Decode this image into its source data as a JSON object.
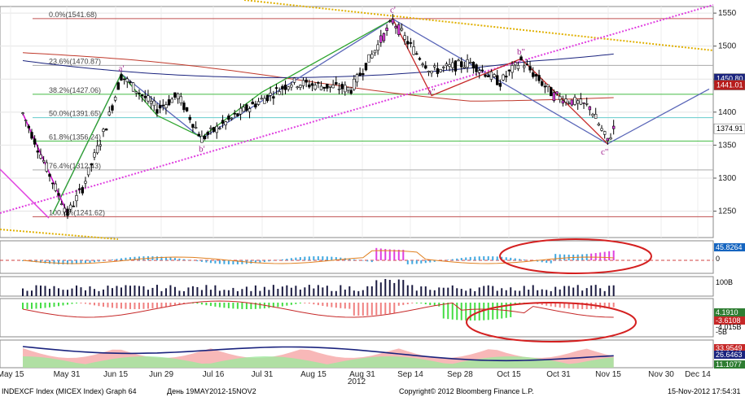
{
  "chart_data": {
    "type": "candlestick",
    "price_axis": {
      "min": 1210,
      "max": 1560,
      "ticks": [
        1250,
        1300,
        1350,
        1400,
        1450,
        1500,
        1550
      ]
    },
    "x_ticks": [
      "May 15",
      "May 31",
      "Jun 15",
      "Jun 29",
      "Jul 16",
      "Jul 31",
      "Aug 15",
      "Aug 31",
      "Sep 14",
      "Sep 28",
      "Oct 15",
      "Oct 31",
      "Nov 15",
      "Nov 30",
      "Dec 14"
    ],
    "x_year": "2012",
    "fibonacci": [
      {
        "label": "0.0%(1541.68)",
        "value": 1541.68,
        "color": "#c05050"
      },
      {
        "label": "23.6%(1470.87)",
        "value": 1470.87,
        "color": "#aaaaaa"
      },
      {
        "label": "38.2%(1427.06)",
        "value": 1427.06,
        "color": "#44bb44"
      },
      {
        "label": "50.0%(1391.65)",
        "value": 1391.65,
        "color": "#66cccc"
      },
      {
        "label": "61.8%(1356.24)",
        "value": 1356.24,
        "color": "#44bb44"
      },
      {
        "label": "76.4%(1312.43)",
        "value": 1312.43,
        "color": "#aaaaaa"
      },
      {
        "label": "100.0%(1241.62)",
        "value": 1241.62,
        "color": "#c05050"
      }
    ],
    "wave_labels": [
      {
        "text": "a'",
        "day": 33,
        "price": 1462
      },
      {
        "text": "b'",
        "day": 60,
        "price": 1340
      },
      {
        "text": "c'",
        "day": 124,
        "price": 1551
      },
      {
        "text": "a\"",
        "day": 137,
        "price": 1427
      },
      {
        "text": "b\"",
        "day": 167,
        "price": 1487
      },
      {
        "text": "c\"",
        "day": 195,
        "price": 1336
      }
    ],
    "price_badges": [
      {
        "text": "1450.80",
        "value": 1450.8,
        "bg": "#1a237e",
        "fg": "#ffffff"
      },
      {
        "text": "1441.01",
        "value": 1441.01,
        "bg": "#b71c1c",
        "fg": "#ffffff"
      },
      {
        "text": "1374.91",
        "value": 1374.91,
        "bg": "#ffffff",
        "fg": "#000000"
      }
    ],
    "panel_badges": [
      {
        "panel": 1,
        "text": "45.8264",
        "bg": "#1565c0",
        "fg": "#ffffff"
      },
      {
        "panel": 1,
        "text": "0",
        "bg": "",
        "fg": "#000000"
      },
      {
        "panel": 2,
        "text": "100B",
        "bg": "",
        "fg": "#000000"
      },
      {
        "panel": 3,
        "text": "4.1910",
        "bg": "#2e7d32",
        "fg": "#ffffff"
      },
      {
        "panel": 3,
        "text": "-3.6108",
        "bg": "#c62828",
        "fg": "#ffffff"
      },
      {
        "panel": 3,
        "text": "-4.015B",
        "bg": "",
        "fg": "#000000"
      },
      {
        "panel": 3,
        "text": "-5B",
        "bg": "",
        "fg": "#000000"
      },
      {
        "panel": 4,
        "text": "33.9549",
        "bg": "#c62828",
        "fg": "#ffffff"
      },
      {
        "panel": 4,
        "text": "26.6463",
        "bg": "#1a237e",
        "fg": "#ffffff"
      },
      {
        "panel": 4,
        "text": "11.1077",
        "bg": "#2e7d32",
        "fg": "#ffffff"
      }
    ],
    "colors": {
      "up": "#ffffff",
      "down": "#000000",
      "fib_ref": "#e0b000",
      "trend": "#e040e0",
      "ellipse": "#d42020"
    }
  },
  "footer": {
    "left": "INDEXCF Index (MICEX Index) Graph 64",
    "range": "День 19MAY2012-15NOV2",
    "copyright": "Copyright© 2012 Bloomberg Finance L.P.",
    "timestamp": "15-Nov-2012 17:54:31"
  }
}
